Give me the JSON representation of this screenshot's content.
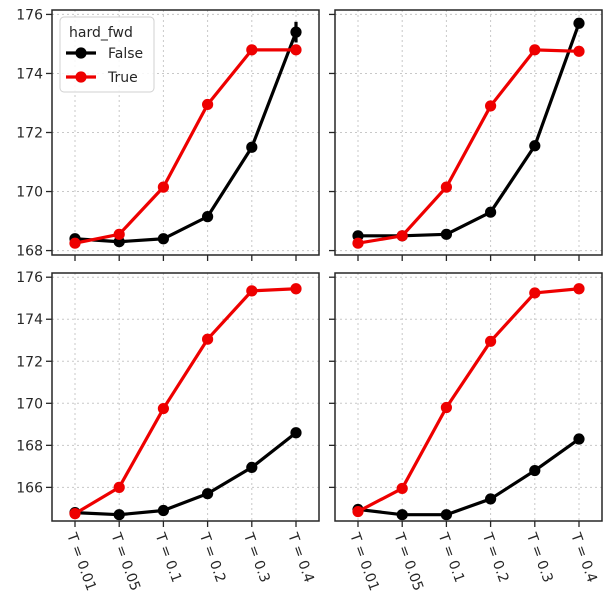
{
  "chart_data": {
    "type": "line",
    "layout": "2x2 grid, shared x-axis per column, shared y-axis per row",
    "categories": [
      "T = 0.01",
      "T = 0.05",
      "T = 0.1",
      "T = 0.2",
      "T = 0.3",
      "T = 0.4"
    ],
    "grid": "dotted",
    "legend": {
      "title": "hard_fwd",
      "placement": "upper-left of top-left panel",
      "entries": [
        {
          "label": "False",
          "color": "#000000"
        },
        {
          "label": "True",
          "color": "#ee0000"
        }
      ]
    },
    "panels": [
      {
        "position": "top-left",
        "ylim": [
          167.85,
          176.15
        ],
        "yticks": [
          168,
          170,
          172,
          174,
          176
        ],
        "show_yticklabels": true,
        "show_xticklabels": false,
        "series": [
          {
            "name": "False",
            "color": "#000000",
            "values": [
              168.4,
              168.3,
              168.4,
              169.15,
              171.5,
              175.4
            ],
            "error": [
              0,
              0,
              0,
              0,
              0,
              0.35
            ]
          },
          {
            "name": "True",
            "color": "#ee0000",
            "values": [
              168.25,
              168.55,
              170.15,
              172.95,
              174.8,
              174.8
            ]
          }
        ]
      },
      {
        "position": "top-right",
        "ylim": [
          167.85,
          176.15
        ],
        "yticks": [
          168,
          170,
          172,
          174,
          176
        ],
        "show_yticklabels": false,
        "show_xticklabels": false,
        "series": [
          {
            "name": "False",
            "color": "#000000",
            "values": [
              168.5,
              168.5,
              168.55,
              169.3,
              171.55,
              175.7
            ]
          },
          {
            "name": "True",
            "color": "#ee0000",
            "values": [
              168.25,
              168.5,
              170.15,
              172.9,
              174.8,
              174.75
            ]
          }
        ]
      },
      {
        "position": "bottom-left",
        "ylim": [
          164.4,
          176.2
        ],
        "yticks": [
          166,
          168,
          170,
          172,
          174,
          176
        ],
        "show_yticklabels": true,
        "show_xticklabels": true,
        "series": [
          {
            "name": "False",
            "color": "#000000",
            "values": [
              164.8,
              164.7,
              164.9,
              165.7,
              166.95,
              168.6
            ]
          },
          {
            "name": "True",
            "color": "#ee0000",
            "values": [
              164.75,
              166.0,
              169.75,
              173.05,
              175.35,
              175.45
            ]
          }
        ]
      },
      {
        "position": "bottom-right",
        "ylim": [
          164.4,
          176.2
        ],
        "yticks": [
          166,
          168,
          170,
          172,
          174,
          176
        ],
        "show_yticklabels": false,
        "show_xticklabels": true,
        "series": [
          {
            "name": "False",
            "color": "#000000",
            "values": [
              164.95,
              164.7,
              164.7,
              165.45,
              166.8,
              168.3
            ]
          },
          {
            "name": "True",
            "color": "#ee0000",
            "values": [
              164.85,
              165.95,
              169.8,
              172.95,
              175.25,
              175.45
            ]
          }
        ]
      }
    ]
  }
}
